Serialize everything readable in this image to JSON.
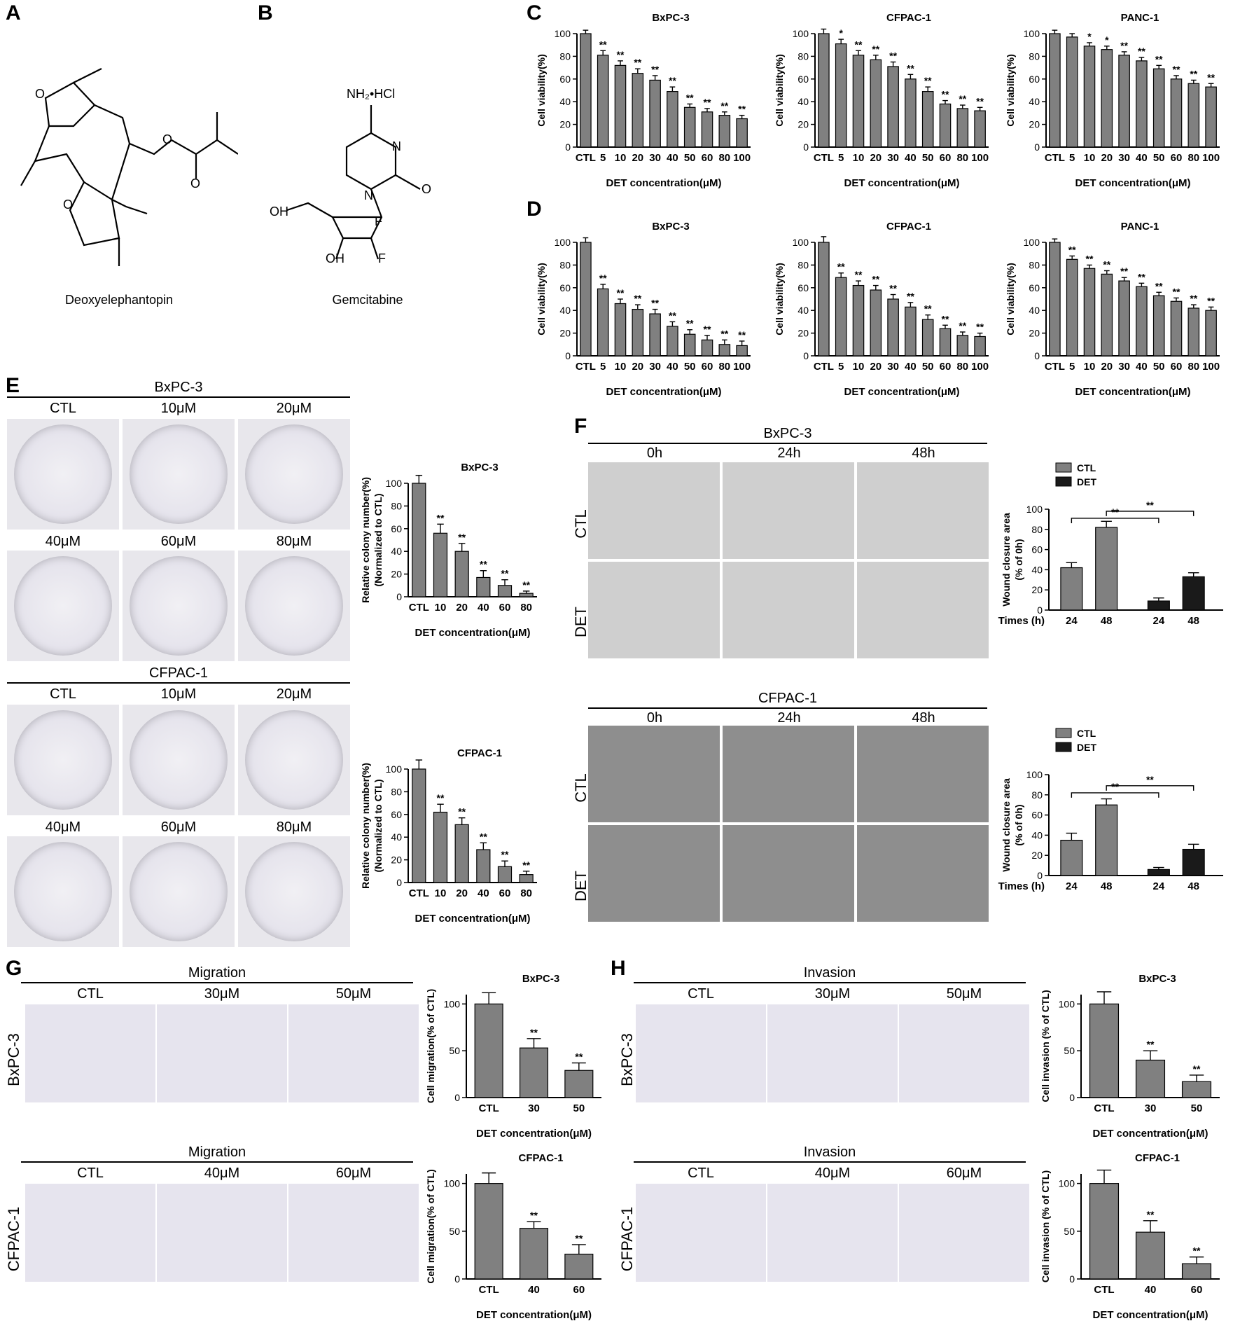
{
  "panels": {
    "A": {
      "label": "A",
      "compound": "Deoxyelephantopin"
    },
    "B": {
      "label": "B",
      "compound": "Gemcitabine",
      "chem_label": "NH₂•HCl"
    },
    "C": {
      "label": "C"
    },
    "D": {
      "label": "D"
    },
    "E": {
      "label": "E",
      "sections": [
        {
          "title": "BxPC-3",
          "cols_top": [
            "CTL",
            "10μM",
            "20μM"
          ],
          "cols_bottom": [
            "40μM",
            "60μM",
            "80μM"
          ]
        },
        {
          "title": "CFPAC-1",
          "cols_top": [
            "CTL",
            "10μM",
            "20μM"
          ],
          "cols_bottom": [
            "40μM",
            "60μM",
            "80μM"
          ]
        }
      ]
    },
    "F": {
      "label": "F",
      "sections": [
        {
          "title": "BxPC-3",
          "cols": [
            "0h",
            "24h",
            "48h"
          ],
          "rows": [
            "CTL",
            "DET"
          ]
        },
        {
          "title": "CFPAC-1",
          "cols": [
            "0h",
            "24h",
            "48h"
          ],
          "rows": [
            "CTL",
            "DET"
          ]
        }
      ]
    },
    "G": {
      "label": "G",
      "sections": [
        {
          "title": "Migration",
          "cols": [
            "CTL",
            "30μM",
            "50μM"
          ],
          "row": "BxPC-3"
        },
        {
          "title": "Migration",
          "cols": [
            "CTL",
            "40μM",
            "60μM"
          ],
          "row": "CFPAC-1"
        }
      ]
    },
    "H": {
      "label": "H",
      "sections": [
        {
          "title": "Invasion",
          "cols": [
            "CTL",
            "30μM",
            "50μM"
          ],
          "row": "BxPC-3"
        },
        {
          "title": "Invasion",
          "cols": [
            "CTL",
            "40μM",
            "60μM"
          ],
          "row": "CFPAC-1"
        }
      ]
    }
  },
  "chart_data": [
    {
      "id": "C1",
      "type": "bar",
      "title": "BxPC-3",
      "xlabel": "DET concentration(μM)",
      "ylabel": "Cell viability(%)",
      "ylim": [
        0,
        100
      ],
      "yticks": [
        0,
        20,
        40,
        60,
        80,
        100
      ],
      "categories": [
        "CTL",
        "5",
        "10",
        "20",
        "30",
        "40",
        "50",
        "60",
        "80",
        "100"
      ],
      "values": [
        100,
        81,
        72,
        65,
        59,
        49,
        35,
        31,
        28,
        25
      ],
      "errors": [
        3,
        4,
        4,
        4,
        4,
        4,
        3,
        3,
        3,
        3
      ],
      "annotations": [
        "",
        "**",
        "**",
        "**",
        "**",
        "**",
        "**",
        "**",
        "**",
        "**"
      ]
    },
    {
      "id": "C2",
      "type": "bar",
      "title": "CFPAC-1",
      "xlabel": "DET concentration(μM)",
      "ylabel": "Cell viability(%)",
      "ylim": [
        0,
        100
      ],
      "yticks": [
        0,
        20,
        40,
        60,
        80,
        100
      ],
      "categories": [
        "CTL",
        "5",
        "10",
        "20",
        "30",
        "40",
        "50",
        "60",
        "80",
        "100"
      ],
      "values": [
        100,
        91,
        81,
        77,
        71,
        60,
        49,
        38,
        34,
        32
      ],
      "errors": [
        4,
        4,
        4,
        4,
        4,
        4,
        4,
        3,
        3,
        3
      ],
      "annotations": [
        "",
        "*",
        "**",
        "**",
        "**",
        "**",
        "**",
        "**",
        "**",
        "**"
      ]
    },
    {
      "id": "C3",
      "type": "bar",
      "title": "PANC-1",
      "xlabel": "DET concentration(μM)",
      "ylabel": "Cell viability(%)",
      "ylim": [
        0,
        100
      ],
      "yticks": [
        0,
        20,
        40,
        60,
        80,
        100
      ],
      "categories": [
        "CTL",
        "5",
        "10",
        "20",
        "30",
        "40",
        "50",
        "60",
        "80",
        "100"
      ],
      "values": [
        100,
        97,
        89,
        86,
        81,
        76,
        69,
        60,
        56,
        53
      ],
      "errors": [
        3,
        3,
        3,
        3,
        3,
        3,
        3,
        3,
        3,
        3
      ],
      "annotations": [
        "",
        "",
        "*",
        "*",
        "**",
        "**",
        "**",
        "**",
        "**",
        "**"
      ]
    },
    {
      "id": "D1",
      "type": "bar",
      "title": "BxPC-3",
      "xlabel": "DET concentration(μM)",
      "ylabel": "Cell viability(%)",
      "ylim": [
        0,
        100
      ],
      "yticks": [
        0,
        20,
        40,
        60,
        80,
        100
      ],
      "categories": [
        "CTL",
        "5",
        "10",
        "20",
        "30",
        "40",
        "50",
        "60",
        "80",
        "100"
      ],
      "values": [
        100,
        59,
        46,
        41,
        37,
        26,
        19,
        14,
        10,
        9
      ],
      "errors": [
        4,
        4,
        4,
        4,
        4,
        4,
        4,
        4,
        4,
        4
      ],
      "annotations": [
        "",
        "**",
        "**",
        "**",
        "**",
        "**",
        "**",
        "**",
        "**",
        "**"
      ]
    },
    {
      "id": "D2",
      "type": "bar",
      "title": "CFPAC-1",
      "xlabel": "DET concentration(μM)",
      "ylabel": "Cell viability(%)",
      "ylim": [
        0,
        100
      ],
      "yticks": [
        0,
        20,
        40,
        60,
        80,
        100
      ],
      "categories": [
        "CTL",
        "5",
        "10",
        "20",
        "30",
        "40",
        "50",
        "60",
        "80",
        "100"
      ],
      "values": [
        100,
        69,
        62,
        58,
        50,
        43,
        32,
        24,
        18,
        17
      ],
      "errors": [
        5,
        4,
        4,
        4,
        4,
        4,
        4,
        3,
        3,
        3
      ],
      "annotations": [
        "",
        "**",
        "**",
        "**",
        "**",
        "**",
        "**",
        "**",
        "**",
        "**"
      ]
    },
    {
      "id": "D3",
      "type": "bar",
      "title": "PANC-1",
      "xlabel": "DET concentration(μM)",
      "ylabel": "Cell viability(%)",
      "ylim": [
        0,
        100
      ],
      "yticks": [
        0,
        20,
        40,
        60,
        80,
        100
      ],
      "categories": [
        "CTL",
        "5",
        "10",
        "20",
        "30",
        "40",
        "50",
        "60",
        "80",
        "100"
      ],
      "values": [
        100,
        85,
        77,
        72,
        66,
        61,
        53,
        48,
        42,
        40
      ],
      "errors": [
        3,
        3,
        3,
        3,
        3,
        3,
        3,
        3,
        3,
        3
      ],
      "annotations": [
        "",
        "**",
        "**",
        "**",
        "**",
        "**",
        "**",
        "**",
        "**",
        "**"
      ]
    },
    {
      "id": "E1",
      "type": "bar",
      "title": "BxPC-3",
      "xlabel": "DET concentration(μM)",
      "ylabel": "Relative colony number(%)",
      "ylabel2": "(Normalized to CTL)",
      "ylim": [
        0,
        100
      ],
      "yticks": [
        0,
        20,
        40,
        60,
        80,
        100
      ],
      "categories": [
        "CTL",
        "10",
        "20",
        "40",
        "60",
        "80"
      ],
      "values": [
        100,
        56,
        40,
        17,
        10,
        3
      ],
      "errors": [
        7,
        8,
        7,
        6,
        5,
        2
      ],
      "annotations": [
        "",
        "**",
        "**",
        "**",
        "**",
        "**"
      ]
    },
    {
      "id": "E2",
      "type": "bar",
      "title": "CFPAC-1",
      "xlabel": "DET concentration(μM)",
      "ylabel": "Relative colony number(%)",
      "ylabel2": "(Normalized to CTL)",
      "ylim": [
        0,
        100
      ],
      "yticks": [
        0,
        20,
        40,
        60,
        80,
        100
      ],
      "categories": [
        "CTL",
        "10",
        "20",
        "40",
        "60",
        "80"
      ],
      "values": [
        100,
        62,
        51,
        29,
        14,
        7
      ],
      "errors": [
        8,
        7,
        6,
        6,
        5,
        3
      ],
      "annotations": [
        "",
        "**",
        "**",
        "**",
        "**",
        "**"
      ]
    },
    {
      "id": "F1",
      "type": "bar",
      "grouped": true,
      "xlabel_prefix": "Times (h)",
      "ylabel": "Wound closure area",
      "ylabel2": "(% of 0h)",
      "ylim": [
        0,
        100
      ],
      "yticks": [
        0,
        20,
        40,
        60,
        80,
        100
      ],
      "categories": [
        "24",
        "48",
        "24",
        "48"
      ],
      "values": [
        42,
        82,
        9,
        33
      ],
      "errors": [
        5,
        6,
        3,
        4
      ],
      "colors": [
        "#808080",
        "#808080",
        "#1a1a1a",
        "#1a1a1a"
      ],
      "legend": [
        {
          "name": "CTL",
          "color": "#808080"
        },
        {
          "name": "DET",
          "color": "#1a1a1a"
        }
      ],
      "brackets": [
        {
          "from": 0,
          "to": 2,
          "level": 91,
          "label": "**"
        },
        {
          "from": 1,
          "to": 3,
          "level": 98,
          "label": "**"
        }
      ]
    },
    {
      "id": "F2",
      "type": "bar",
      "grouped": true,
      "xlabel_prefix": "Times (h)",
      "ylabel": "Wound closure area",
      "ylabel2": "(% of 0h)",
      "ylim": [
        0,
        100
      ],
      "yticks": [
        0,
        20,
        40,
        60,
        80,
        100
      ],
      "categories": [
        "24",
        "48",
        "24",
        "48"
      ],
      "values": [
        35,
        70,
        6,
        26
      ],
      "errors": [
        7,
        6,
        2,
        5
      ],
      "colors": [
        "#808080",
        "#808080",
        "#1a1a1a",
        "#1a1a1a"
      ],
      "legend": [
        {
          "name": "CTL",
          "color": "#808080"
        },
        {
          "name": "DET",
          "color": "#1a1a1a"
        }
      ],
      "brackets": [
        {
          "from": 0,
          "to": 2,
          "level": 82,
          "label": "**"
        },
        {
          "from": 1,
          "to": 3,
          "level": 89,
          "label": "**"
        }
      ]
    },
    {
      "id": "G1",
      "type": "bar",
      "title": "BxPC-3",
      "xlabel": "DET concentration(μM)",
      "ylabel": "Cell migration(% of CTL)",
      "ylim": [
        0,
        110
      ],
      "yticks": [
        0,
        50,
        100
      ],
      "categories": [
        "CTL",
        "30",
        "50"
      ],
      "values": [
        100,
        53,
        29
      ],
      "errors": [
        12,
        10,
        8
      ],
      "annotations": [
        "",
        "**",
        "**"
      ]
    },
    {
      "id": "G2",
      "type": "bar",
      "title": "CFPAC-1",
      "xlabel": "DET concentration(μM)",
      "ylabel": "Cell migration(% of CTL)",
      "ylim": [
        0,
        110
      ],
      "yticks": [
        0,
        50,
        100
      ],
      "categories": [
        "CTL",
        "40",
        "60"
      ],
      "values": [
        100,
        53,
        26
      ],
      "errors": [
        11,
        7,
        10
      ],
      "annotations": [
        "",
        "**",
        "**"
      ]
    },
    {
      "id": "H1",
      "type": "bar",
      "title": "BxPC-3",
      "xlabel": "DET concentration(μM)",
      "ylabel": "Cell invasion (% of CTL)",
      "ylim": [
        0,
        110
      ],
      "yticks": [
        0,
        50,
        100
      ],
      "categories": [
        "CTL",
        "30",
        "50"
      ],
      "values": [
        100,
        40,
        17
      ],
      "errors": [
        13,
        10,
        7
      ],
      "annotations": [
        "",
        "**",
        "**"
      ]
    },
    {
      "id": "H2",
      "type": "bar",
      "title": "CFPAC-1",
      "xlabel": "DET concentration(μM)",
      "ylabel": "Cell invasion (% of CTL)",
      "ylim": [
        0,
        110
      ],
      "yticks": [
        0,
        50,
        100
      ],
      "categories": [
        "CTL",
        "40",
        "60"
      ],
      "values": [
        100,
        49,
        16
      ],
      "errors": [
        14,
        12,
        7
      ],
      "annotations": [
        "",
        "**",
        "**"
      ]
    }
  ]
}
